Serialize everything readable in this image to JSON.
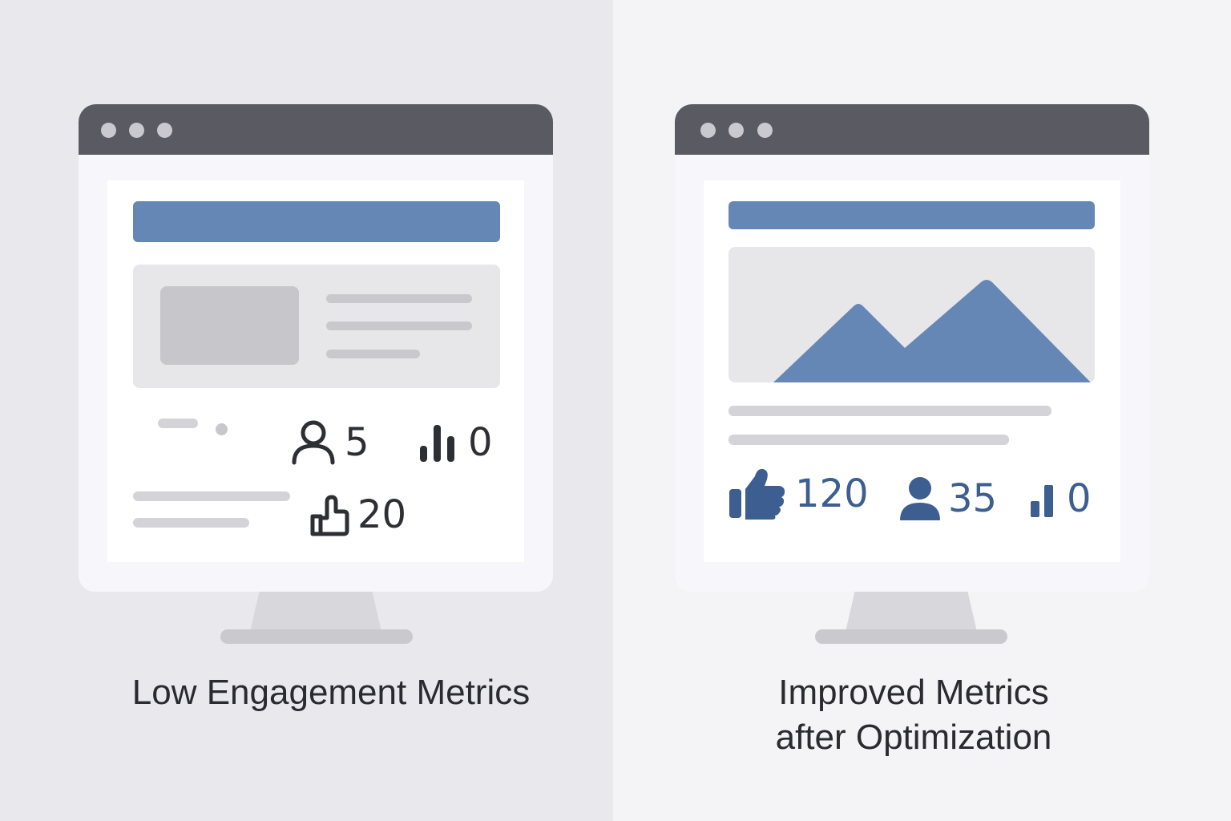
{
  "left": {
    "caption": "Low Engagement Metrics",
    "metrics": {
      "users": "5",
      "views": "0",
      "likes": "20"
    }
  },
  "right": {
    "caption_line1": "Improved Metrics",
    "caption_line2": "after Optimization",
    "metrics": {
      "likes": "120",
      "users": "35",
      "views": "0"
    }
  },
  "colors": {
    "accent_blue": "#6587b5",
    "metric_blue": "#3d5e90",
    "titlebar": "#595a62"
  }
}
